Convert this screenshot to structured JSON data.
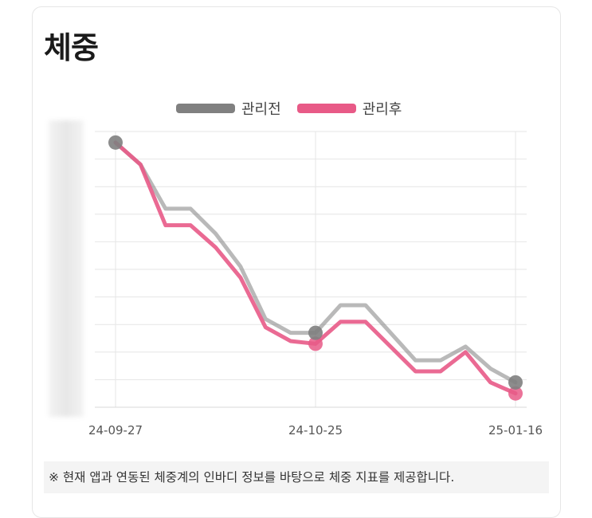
{
  "card": {
    "title": "체중",
    "note": "※ 현재 앱과 연동된 체중계의 인바디 정보를 바탕으로 체중 지표를 제공합니다."
  },
  "colors": {
    "before": "#808080",
    "after": "#e85a87",
    "grid": "#e6e6e6"
  },
  "chart_data": {
    "type": "line",
    "title": "",
    "xlabel": "",
    "ylabel": "",
    "y_axis_labels_visible": false,
    "x_tick_labels": [
      "24-09-27",
      "24-10-25",
      "25-01-16"
    ],
    "x_tick_indices": [
      0,
      8,
      16
    ],
    "ylim": [
      0,
      10
    ],
    "grid": true,
    "legend_position": "top-center",
    "series": [
      {
        "name": "관리전",
        "color": "#808080",
        "values": [
          9.6,
          8.8,
          7.2,
          7.2,
          6.3,
          5.1,
          3.2,
          2.7,
          2.7,
          3.7,
          3.7,
          2.7,
          1.7,
          1.7,
          2.2,
          1.4,
          0.9
        ]
      },
      {
        "name": "관리후",
        "color": "#e85a87",
        "values": [
          9.6,
          8.8,
          6.6,
          6.6,
          5.8,
          4.7,
          2.9,
          2.4,
          2.3,
          3.1,
          3.1,
          2.2,
          1.3,
          1.3,
          2.0,
          0.9,
          0.5
        ]
      }
    ],
    "markers": [
      {
        "series": 0,
        "index": 0
      },
      {
        "series": 1,
        "index": 8
      },
      {
        "series": 0,
        "index": 8
      },
      {
        "series": 1,
        "index": 16
      },
      {
        "series": 0,
        "index": 16
      }
    ]
  }
}
